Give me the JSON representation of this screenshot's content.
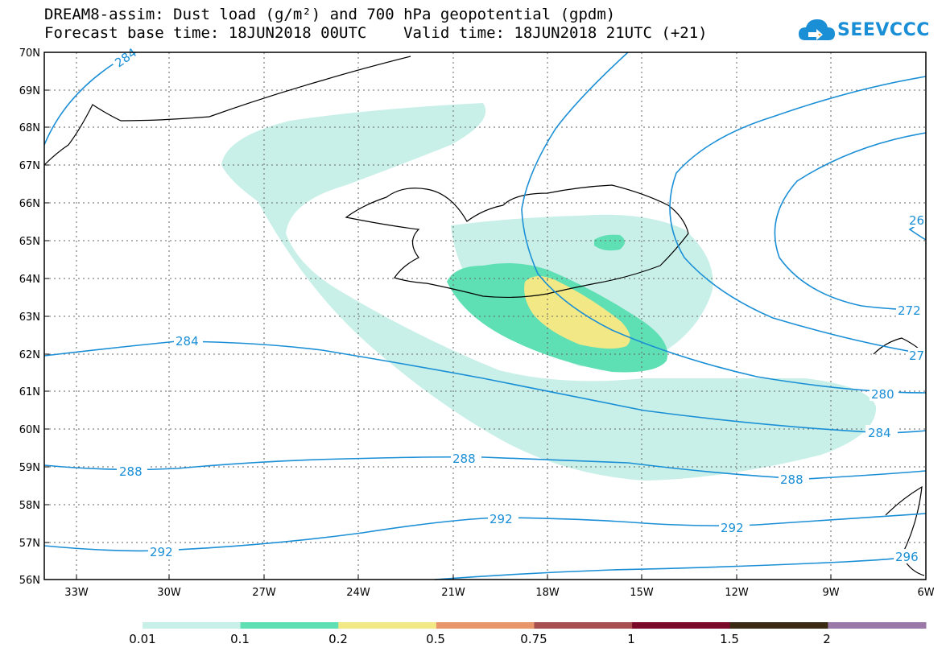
{
  "header": {
    "line1": "DREAM8-assim: Dust load (g/m²) and 700 hPa geopotential (gpdm)",
    "line2": "Forecast base time: 18JUN2018 00UTC    Valid time: 18JUN2018 21UTC (+21)"
  },
  "logo": {
    "text": "SEEVCCC",
    "icon": "cloud-icon"
  },
  "axes": {
    "lat_labels": [
      "70N",
      "69N",
      "68N",
      "67N",
      "66N",
      "65N",
      "64N",
      "63N",
      "62N",
      "61N",
      "60N",
      "59N",
      "58N",
      "57N",
      "56N"
    ],
    "lon_labels": [
      "33W",
      "30W",
      "27W",
      "24W",
      "21W",
      "18W",
      "15W",
      "12W",
      "9W",
      "6W"
    ]
  },
  "contours": {
    "labels": [
      "284",
      "284",
      "284",
      "280",
      "288",
      "288",
      "288",
      "292",
      "292",
      "292",
      "272",
      "26",
      "27",
      "296"
    ]
  },
  "colorbar": {
    "labels": [
      "0.01",
      "0.1",
      "0.2",
      "0.5",
      "0.75",
      "1",
      "1.5",
      "2"
    ],
    "colors": [
      "#c8f0e8",
      "#5fdfb4",
      "#f2e986",
      "#e9956b",
      "#a8504f",
      "#7a0a2a",
      "#3a2a14",
      "#9a78a8"
    ]
  },
  "colors": {
    "contour": "#1a8fd6",
    "dust_low": "#c8f0e8",
    "dust_mid": "#5fdfb4",
    "dust_high": "#f2e986"
  }
}
